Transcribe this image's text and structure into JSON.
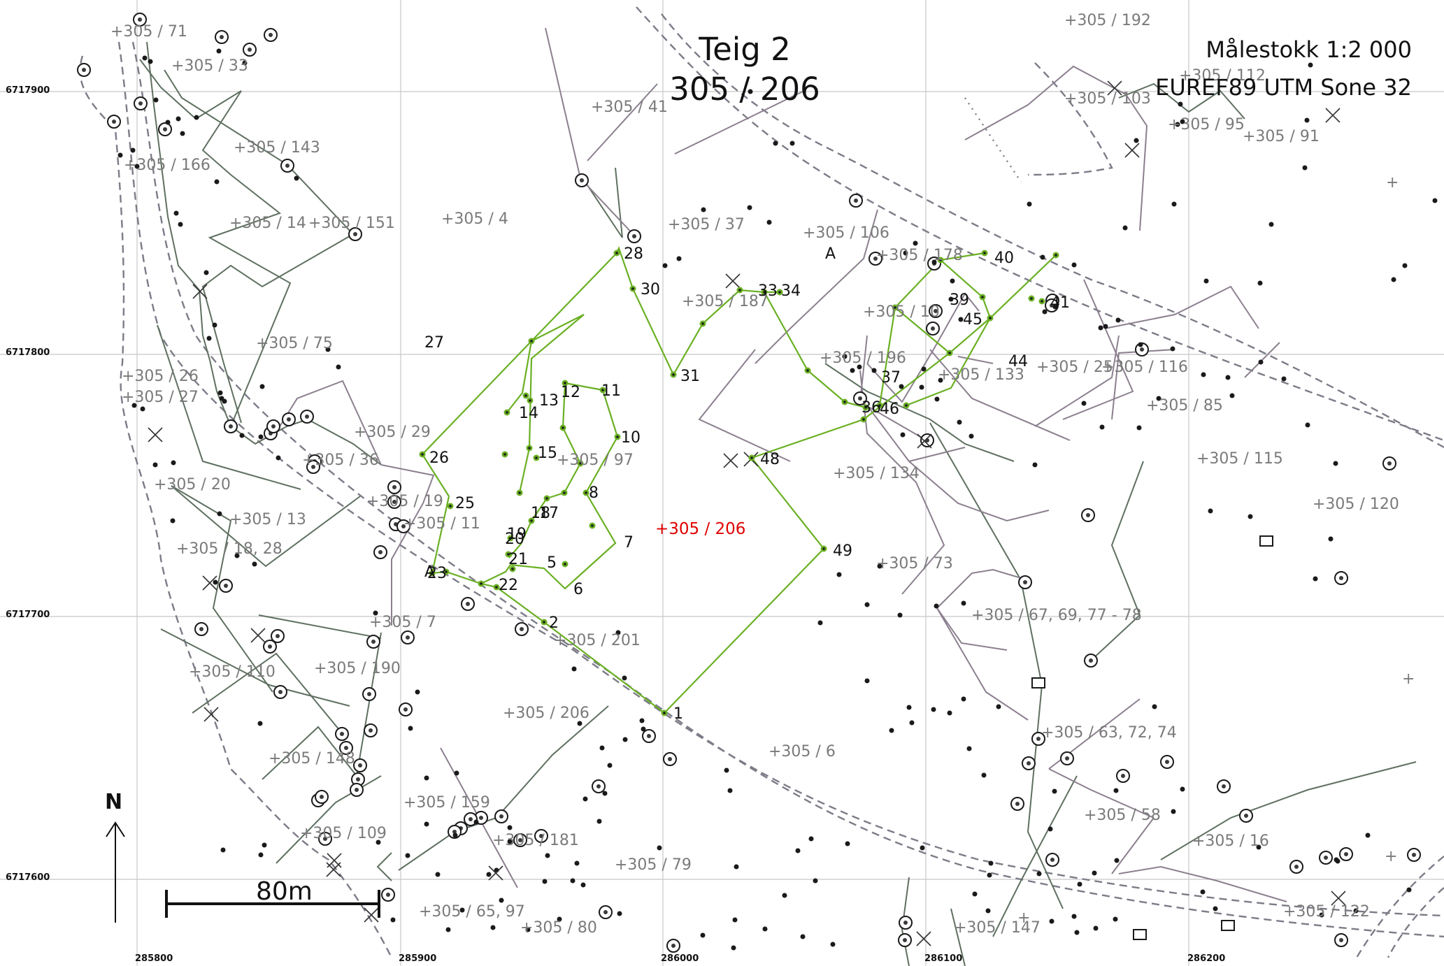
{
  "map": {
    "title_line1": "Teig 2",
    "title_line2": "305 / 206",
    "scale": "Målestokk 1:2 000",
    "crs": "EUREF89 UTM Sone 32",
    "north_label": "N",
    "scalebar_label": "80m"
  },
  "grid": {
    "eastings": [
      "285800",
      "285900",
      "286000",
      "286100",
      "286200"
    ],
    "northings": [
      "6717900",
      "6717800",
      "6717700",
      "6717600"
    ]
  },
  "parcels": [
    {
      "label": "305 / 71"
    },
    {
      "label": "305 / 33"
    },
    {
      "label": "305 / 143"
    },
    {
      "label": "305 / 166"
    },
    {
      "label": "305 / 14"
    },
    {
      "label": "305 / 151"
    },
    {
      "label": "305 / 4"
    },
    {
      "label": "305 / 41"
    },
    {
      "label": "305 / 37"
    },
    {
      "label": "305 / 106"
    },
    {
      "label": "305 / 178"
    },
    {
      "label": "305 / 187"
    },
    {
      "label": "305 / 75"
    },
    {
      "label": "305 / 26"
    },
    {
      "label": "305 / 27"
    },
    {
      "label": "305 / 29"
    },
    {
      "label": "305 / 36"
    },
    {
      "label": "305 / 20"
    },
    {
      "label": "305 / 19"
    },
    {
      "label": "305 / 11"
    },
    {
      "label": "305 / 13"
    },
    {
      "label": "305 / 18, 28"
    },
    {
      "label": "305 / 7"
    },
    {
      "label": "305 / 110"
    },
    {
      "label": "305 / 190"
    },
    {
      "label": "305 / 148"
    },
    {
      "label": "305 / 109"
    },
    {
      "label": "305 / 159"
    },
    {
      "label": "305 / 181"
    },
    {
      "label": "305 / 65, 97"
    },
    {
      "label": "305 / 80"
    },
    {
      "label": "305 / 79"
    },
    {
      "label": "305 / 206"
    },
    {
      "label": "305 / 201"
    },
    {
      "label": "305 / 97"
    },
    {
      "label": "305 / 6"
    },
    {
      "label": "305 / 196"
    },
    {
      "label": "305 / 10"
    },
    {
      "label": "305 / 133"
    },
    {
      "label": "305 / 134"
    },
    {
      "label": "305 / 73"
    },
    {
      "label": "305 / 67, 69, 77 - 78"
    },
    {
      "label": "305 / 63, 72, 74"
    },
    {
      "label": "305 / 58"
    },
    {
      "label": "305 / 16"
    },
    {
      "label": "305 / 147"
    },
    {
      "label": "305 / 122"
    },
    {
      "label": "305 / 192"
    },
    {
      "label": "305 / 112"
    },
    {
      "label": "305 / 103"
    },
    {
      "label": "305 / 95"
    },
    {
      "label": "305 / 91"
    },
    {
      "label": "305 / 25"
    },
    {
      "label": "305 / 116"
    },
    {
      "label": "305 / 85"
    },
    {
      "label": "305 / 115"
    },
    {
      "label": "305 / 120"
    }
  ],
  "target_parcel": {
    "label": "305 / 206"
  },
  "points": [
    {
      "id": "1"
    },
    {
      "id": "2"
    },
    {
      "id": "5"
    },
    {
      "id": "6"
    },
    {
      "id": "7"
    },
    {
      "id": "8"
    },
    {
      "id": "10"
    },
    {
      "id": "11"
    },
    {
      "id": "12"
    },
    {
      "id": "13"
    },
    {
      "id": "14"
    },
    {
      "id": "15"
    },
    {
      "id": "17"
    },
    {
      "id": "18"
    },
    {
      "id": "19"
    },
    {
      "id": "20"
    },
    {
      "id": "21"
    },
    {
      "id": "22"
    },
    {
      "id": "23"
    },
    {
      "id": "25"
    },
    {
      "id": "26"
    },
    {
      "id": "27"
    },
    {
      "id": "28"
    },
    {
      "id": "30"
    },
    {
      "id": "31"
    },
    {
      "id": "33"
    },
    {
      "id": "34"
    },
    {
      "id": "36"
    },
    {
      "id": "37"
    },
    {
      "id": "39"
    },
    {
      "id": "40"
    },
    {
      "id": "41"
    },
    {
      "id": "44"
    },
    {
      "id": "45"
    },
    {
      "id": "46"
    },
    {
      "id": "48"
    },
    {
      "id": "49"
    }
  ],
  "colors": {
    "boundary": "#6ab023",
    "target_label": "#e00000",
    "neighbor_line": "#5f7060",
    "purple_line": "#8c7f8f",
    "label_gray": "#7a7a7a",
    "grid": "#c8c8c8",
    "road": "#7c7c88"
  }
}
